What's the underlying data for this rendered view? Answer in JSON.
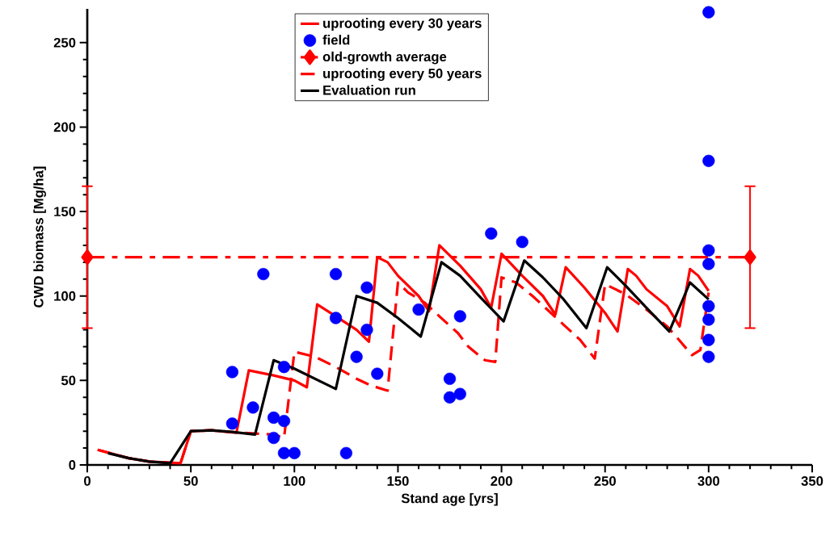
{
  "chart_data": {
    "type": "line",
    "xlabel": "Stand age [yrs]",
    "ylabel": "CWD biomass [Mg/ha]",
    "xlim": [
      0,
      350
    ],
    "ylim": [
      0,
      270
    ],
    "xticks": [
      0,
      50,
      100,
      150,
      200,
      250,
      300,
      350
    ],
    "yticks": [
      0,
      50,
      100,
      150,
      200,
      250
    ],
    "grid": false,
    "legend": "top",
    "marker": "none",
    "line_style": "solid",
    "series": [
      {
        "name": "uprooting every 30 years",
        "color": "#ff0000",
        "x": [
          5,
          20,
          30,
          45,
          50,
          60,
          72,
          78,
          90,
          100,
          106,
          111,
          120,
          130,
          136,
          140,
          145,
          150,
          160,
          165,
          170,
          180,
          190,
          195,
          200,
          210,
          220,
          226,
          231,
          240,
          250,
          256,
          261,
          265,
          270,
          280,
          286,
          291,
          295,
          300
        ],
        "values": [
          9,
          4,
          2,
          1,
          20,
          20.5,
          19,
          56,
          53,
          50,
          46,
          95,
          88,
          80,
          73,
          123,
          120,
          112,
          100,
          91,
          130,
          118,
          104,
          93,
          125,
          112,
          100,
          89,
          117,
          105,
          90,
          79,
          116,
          112,
          104,
          94,
          82,
          116,
          112,
          103
        ]
      },
      {
        "name": "field",
        "type": "scatter",
        "color": "#0000ff",
        "marker": "circle",
        "x": [
          70,
          70,
          80,
          85,
          90,
          90,
          95,
          95,
          95,
          100,
          120,
          120,
          125,
          130,
          135,
          135,
          140,
          160,
          175,
          175,
          180,
          180,
          195,
          210,
          300,
          300,
          300,
          300,
          300,
          300,
          300,
          300
        ],
        "values": [
          55,
          24.5,
          34,
          113,
          28,
          16,
          58,
          26,
          7,
          7,
          113,
          87,
          7,
          64,
          105,
          80,
          54,
          92,
          51,
          40,
          42,
          88,
          137,
          132,
          268,
          180,
          127,
          119,
          94,
          86,
          74,
          64
        ]
      },
      {
        "name": "old-growth average",
        "color": "#ff0000",
        "marker": "diamond",
        "line_style": "dashdot",
        "x": [
          0,
          320
        ],
        "values": [
          123,
          123
        ],
        "errors": [
          42,
          42
        ]
      },
      {
        "name": "uprooting every 50 years",
        "color": "#ff0000",
        "line_style": "dashed",
        "x": [
          5,
          20,
          30,
          45,
          50,
          60,
          75,
          90,
          95,
          100,
          110,
          120,
          130,
          137,
          145,
          150,
          155,
          163,
          170,
          179,
          184,
          192,
          197,
          200,
          207,
          215,
          230,
          238,
          245,
          250,
          260,
          270,
          280,
          285,
          292,
          296,
          300
        ],
        "values": [
          9,
          4,
          2,
          1,
          20,
          20.5,
          19,
          18,
          16,
          67,
          64,
          58,
          51,
          47,
          44,
          108,
          102,
          96,
          88,
          78,
          70,
          62,
          61,
          111,
          108,
          100,
          83,
          74,
          63,
          107,
          101,
          92,
          82,
          75,
          65,
          68,
          102
        ]
      },
      {
        "name": "Evaluation run",
        "color": "#000000",
        "x": [
          10,
          20,
          30,
          40,
          50,
          60,
          70,
          81,
          90,
          100,
          120,
          130,
          140,
          150,
          161,
          171,
          180,
          190,
          201,
          211,
          220,
          230,
          241,
          251,
          260,
          270,
          281,
          291,
          300
        ],
        "values": [
          7,
          4,
          2,
          1,
          20,
          20.5,
          19.5,
          18,
          62,
          57,
          45,
          100,
          96,
          87,
          76,
          120,
          112,
          99,
          85,
          121,
          111,
          98,
          81,
          117,
          106,
          93,
          79,
          108,
          98
        ]
      }
    ]
  }
}
